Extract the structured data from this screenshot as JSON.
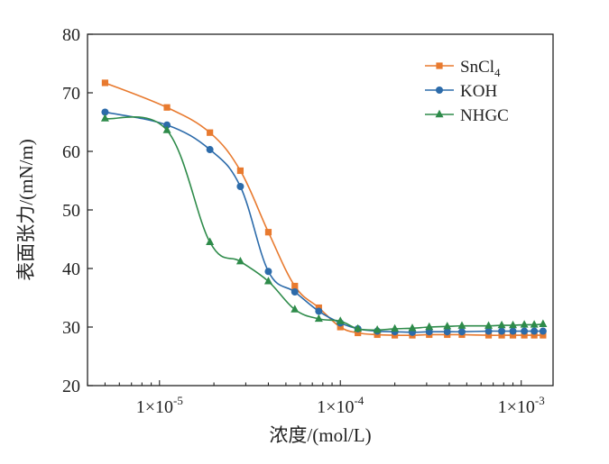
{
  "chart_data": {
    "type": "line",
    "xscale": "log",
    "xlabel": "浓度/(mol/L)",
    "ylabel": "表面张力/(mN/m)",
    "xlim": [
      4e-06,
      0.0015
    ],
    "ylim": [
      20,
      80
    ],
    "yticks": [
      20,
      30,
      40,
      50,
      60,
      70,
      80
    ],
    "xticks": [
      1e-05,
      0.0001,
      0.001
    ],
    "xtick_labels": [
      {
        "base": "1×10",
        "exp": "-5"
      },
      {
        "base": "1×10",
        "exp": "-4"
      },
      {
        "base": "1×10",
        "exp": "-3"
      }
    ],
    "legend_position": "top-right",
    "series": [
      {
        "name_base": "SnCl",
        "name_sub": "4",
        "color": "#E87A2F",
        "marker": "square",
        "points": [
          [
            5e-06,
            71.7
          ],
          [
            1.1e-05,
            67.5
          ],
          [
            1.9e-05,
            63.2
          ],
          [
            2.8e-05,
            56.7
          ],
          [
            4e-05,
            46.2
          ],
          [
            5.6e-05,
            37.0
          ],
          [
            7.6e-05,
            33.3
          ],
          [
            0.0001,
            30.0
          ],
          [
            0.000125,
            29.0
          ],
          [
            0.00016,
            28.7
          ],
          [
            0.0002,
            28.6
          ],
          [
            0.00025,
            28.6
          ],
          [
            0.00031,
            28.7
          ],
          [
            0.00039,
            28.7
          ],
          [
            0.00047,
            28.7
          ],
          [
            0.00066,
            28.6
          ],
          [
            0.00078,
            28.6
          ],
          [
            0.0009,
            28.6
          ],
          [
            0.00104,
            28.6
          ],
          [
            0.00118,
            28.6
          ],
          [
            0.00132,
            28.6
          ]
        ]
      },
      {
        "name": "KOH",
        "color": "#2C6BAA",
        "marker": "circle",
        "points": [
          [
            5e-06,
            66.7
          ],
          [
            1.1e-05,
            64.5
          ],
          [
            1.9e-05,
            60.3
          ],
          [
            2.8e-05,
            54.0
          ],
          [
            4e-05,
            39.5
          ],
          [
            5.6e-05,
            36.0
          ],
          [
            7.6e-05,
            32.7
          ],
          [
            0.0001,
            30.7
          ],
          [
            0.000125,
            29.7
          ],
          [
            0.00016,
            29.3
          ],
          [
            0.0002,
            29.2
          ],
          [
            0.00025,
            29.1
          ],
          [
            0.00031,
            29.2
          ],
          [
            0.00039,
            29.2
          ],
          [
            0.00047,
            29.2
          ],
          [
            0.00066,
            29.3
          ],
          [
            0.00078,
            29.3
          ],
          [
            0.0009,
            29.3
          ],
          [
            0.00104,
            29.3
          ],
          [
            0.00118,
            29.3
          ],
          [
            0.00132,
            29.3
          ]
        ]
      },
      {
        "name": "NHGC",
        "color": "#2E8B4A",
        "marker": "triangle",
        "points": [
          [
            5e-06,
            65.6
          ],
          [
            1.1e-05,
            63.6
          ],
          [
            1.9e-05,
            44.5
          ],
          [
            2.8e-05,
            41.2
          ],
          [
            4e-05,
            37.8
          ],
          [
            5.6e-05,
            33.0
          ],
          [
            7.6e-05,
            31.4
          ],
          [
            0.0001,
            31.0
          ],
          [
            0.000125,
            29.7
          ],
          [
            0.00016,
            29.5
          ],
          [
            0.0002,
            29.7
          ],
          [
            0.00025,
            29.8
          ],
          [
            0.00031,
            30.0
          ],
          [
            0.00039,
            30.1
          ],
          [
            0.00047,
            30.2
          ],
          [
            0.00066,
            30.2
          ],
          [
            0.00078,
            30.3
          ],
          [
            0.0009,
            30.3
          ],
          [
            0.00104,
            30.4
          ],
          [
            0.00118,
            30.4
          ],
          [
            0.00132,
            30.5
          ]
        ]
      }
    ]
  }
}
